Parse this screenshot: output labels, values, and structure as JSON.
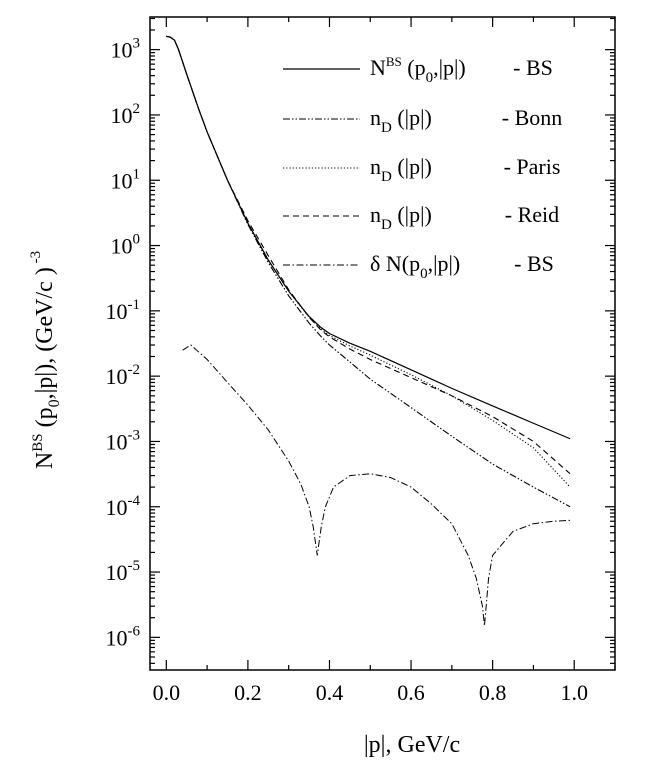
{
  "chart_data": {
    "type": "line",
    "title": "",
    "xlabel": "|p|, GeV/c",
    "ylabel": "N BS (p0,|p|), (GeV/c ) -3",
    "x_axis": {
      "range": [
        -0.04,
        1.1
      ],
      "ticks": [
        0.0,
        0.2,
        0.4,
        0.6,
        0.8,
        1.0
      ],
      "tick_labels": [
        "0.0",
        "0.2",
        "0.4",
        "0.6",
        "0.8",
        "1.0"
      ]
    },
    "y_axis": {
      "scale": "log",
      "range_exp": [
        -6.5,
        3.5
      ],
      "ticks_exp": [
        3,
        2,
        1,
        0,
        -1,
        -2,
        -3,
        -4,
        -5,
        -6
      ],
      "tick_base": "10",
      "tick_exponents": [
        "3",
        "2",
        "1",
        "0",
        "-1",
        "-2",
        "-3",
        "-4",
        "-5",
        "-6"
      ]
    },
    "legend": {
      "position": "top-right",
      "entries": [
        {
          "series": "bs",
          "label_main": "N",
          "label_sup": "BS",
          "label_rest": " (p",
          "label_sub": "0",
          "label_rest2": ",|p|)",
          "label_suffix": " - BS"
        },
        {
          "series": "bonn",
          "label_main": "n",
          "label_sub": "D",
          "label_rest": " (|p|)",
          "label_suffix": "- Bonn"
        },
        {
          "series": "paris",
          "label_main": "n",
          "label_sub": "D",
          "label_rest": " (|p|)",
          "label_suffix": "- Paris"
        },
        {
          "series": "reid",
          "label_main": "n",
          "label_sub": "D",
          "label_rest": " (|p|)",
          "label_suffix": "- Reid"
        },
        {
          "series": "delta",
          "label_main": "δ N(p",
          "label_sub": "0",
          "label_rest": ",|p|)",
          "label_suffix": "- BS"
        }
      ]
    },
    "series": [
      {
        "id": "bs",
        "name": "N^BS (p0,|p|) - BS",
        "style": "solid",
        "x": [
          0.0,
          0.01,
          0.02,
          0.03,
          0.05,
          0.08,
          0.1,
          0.15,
          0.2,
          0.25,
          0.3,
          0.35,
          0.38,
          0.4,
          0.45,
          0.5,
          0.6,
          0.7,
          0.8,
          0.9,
          0.99
        ],
        "y": [
          1600,
          1550,
          1400,
          1000,
          420,
          120,
          55,
          10,
          2.2,
          0.6,
          0.2,
          0.082,
          0.055,
          0.045,
          0.032,
          0.024,
          0.0125,
          0.0065,
          0.0035,
          0.0019,
          0.0011
        ]
      },
      {
        "id": "bonn",
        "name": "n_D (|p|) - Bonn",
        "style": "dash-dot-dot",
        "x": [
          0.0,
          0.01,
          0.02,
          0.03,
          0.05,
          0.08,
          0.1,
          0.15,
          0.2,
          0.25,
          0.3,
          0.35,
          0.38,
          0.4,
          0.45,
          0.5,
          0.6,
          0.7,
          0.8,
          0.9,
          0.99
        ],
        "y": [
          1600,
          1550,
          1400,
          1000,
          420,
          120,
          55,
          10,
          2.1,
          0.55,
          0.17,
          0.065,
          0.04,
          0.03,
          0.0165,
          0.009,
          0.0033,
          0.0012,
          0.00045,
          0.0002,
          0.0001
        ]
      },
      {
        "id": "paris",
        "name": "n_D (|p|) - Paris",
        "style": "dotted",
        "x": [
          0.0,
          0.01,
          0.02,
          0.03,
          0.05,
          0.08,
          0.1,
          0.15,
          0.2,
          0.25,
          0.3,
          0.35,
          0.38,
          0.4,
          0.45,
          0.5,
          0.6,
          0.7,
          0.8,
          0.9,
          0.99
        ],
        "y": [
          1600,
          1550,
          1400,
          1000,
          420,
          120,
          55,
          10,
          2.2,
          0.6,
          0.2,
          0.08,
          0.052,
          0.042,
          0.029,
          0.021,
          0.0105,
          0.005,
          0.0021,
          0.0008,
          0.0002
        ]
      },
      {
        "id": "reid",
        "name": "n_D (|p|) - Reid",
        "style": "dashed",
        "x": [
          0.0,
          0.01,
          0.02,
          0.03,
          0.05,
          0.08,
          0.1,
          0.15,
          0.2,
          0.25,
          0.3,
          0.35,
          0.38,
          0.4,
          0.45,
          0.5,
          0.6,
          0.7,
          0.8,
          0.9,
          0.99
        ],
        "y": [
          1600,
          1550,
          1400,
          1000,
          420,
          120,
          55,
          10,
          2.4,
          0.7,
          0.21,
          0.08,
          0.05,
          0.04,
          0.026,
          0.018,
          0.0095,
          0.005,
          0.0024,
          0.001,
          0.00032
        ]
      },
      {
        "id": "delta",
        "name": "δ N(p0,|p|) - BS",
        "style": "dash-dot",
        "x": [
          0.04,
          0.06,
          0.1,
          0.15,
          0.2,
          0.25,
          0.3,
          0.33,
          0.35,
          0.36,
          0.37,
          0.38,
          0.39,
          0.41,
          0.45,
          0.5,
          0.55,
          0.6,
          0.65,
          0.7,
          0.74,
          0.76,
          0.775,
          0.78,
          0.79,
          0.8,
          0.85,
          0.9,
          0.95,
          0.99
        ],
        "y": [
          0.025,
          0.03,
          0.018,
          0.008,
          0.0036,
          0.0015,
          0.0005,
          0.00022,
          0.0001,
          5e-05,
          1.8e-05,
          5e-05,
          0.0001,
          0.0002,
          0.0003,
          0.00032,
          0.00028,
          0.0002,
          0.00011,
          5.5e-05,
          1.8e-05,
          8e-06,
          3e-06,
          1.5e-06,
          8e-06,
          1.8e-05,
          4.2e-05,
          5.5e-05,
          6e-05,
          6.2e-05
        ]
      }
    ]
  }
}
